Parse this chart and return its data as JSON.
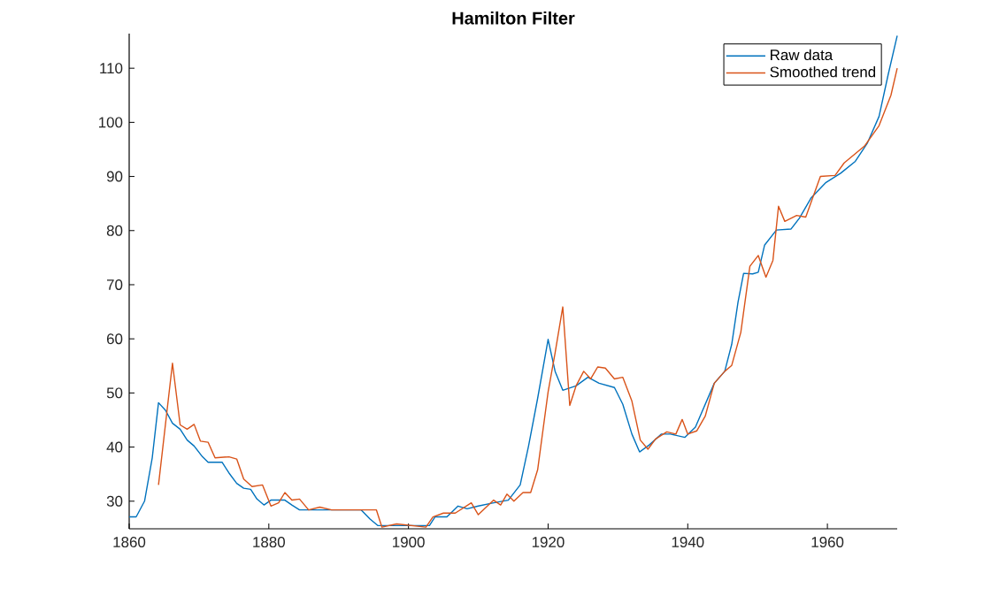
{
  "chart_data": {
    "type": "line",
    "title": "Hamilton Filter",
    "xlim": [
      1860,
      1970
    ],
    "xticks": [
      1860,
      1880,
      1900,
      1920,
      1940,
      1960
    ],
    "ylim": [
      24.9,
      116.4
    ],
    "yticks": [
      30,
      40,
      50,
      60,
      70,
      80,
      90,
      100,
      110
    ],
    "legend": "top right",
    "series": [
      {
        "name": "Raw data",
        "color": "#0072bd",
        "x": [
          1860,
          1861,
          1862.2,
          1863.3,
          1864.2,
          1865.2,
          1866.2,
          1867.3,
          1868.3,
          1869.3,
          1870.5,
          1871.3,
          1873.3,
          1874.3,
          1875.4,
          1876.4,
          1877.4,
          1878.3,
          1879.3,
          1880.3,
          1882.3,
          1883.3,
          1884.4,
          1893.2,
          1894.5,
          1895.6,
          1903,
          1903.8,
          1905.5,
          1907.1,
          1908.4,
          1910,
          1912.2,
          1914.3,
          1916,
          1917.2,
          1918.5,
          1920,
          1921,
          1922.1,
          1924,
          1925.7,
          1927.3,
          1929.5,
          1930.7,
          1932,
          1933.1,
          1934.5,
          1936.2,
          1937.5,
          1939.6,
          1941.1,
          1942.5,
          1943.8,
          1945.3,
          1946.3,
          1947.2,
          1948,
          1949.3,
          1950.1,
          1951,
          1952.7,
          1954.8,
          1956,
          1957.7,
          1959.8,
          1961.9,
          1964,
          1965.7,
          1967.4,
          1968.7,
          1970
        ],
        "values": [
          27.1,
          27.1,
          30,
          38,
          48.2,
          46.8,
          44.4,
          43.3,
          41.3,
          40.2,
          38.2,
          37.2,
          37.2,
          35.2,
          33.3,
          32.4,
          32.2,
          30.4,
          29.3,
          30.2,
          30.2,
          29.3,
          28.4,
          28.4,
          26.7,
          25.5,
          25.5,
          27.1,
          27.1,
          29.1,
          28.6,
          29.1,
          29.7,
          30.2,
          33,
          40.2,
          49,
          59.9,
          54,
          50.5,
          51.3,
          52.9,
          51.8,
          51,
          47.9,
          42.4,
          39.1,
          40.4,
          42.4,
          42.4,
          41.8,
          43.7,
          47.9,
          51.8,
          54,
          59,
          66.8,
          72.1,
          72,
          72.3,
          77.3,
          80.1,
          80.3,
          82.3,
          86.1,
          88.9,
          90.6,
          92.8,
          96.1,
          101.1,
          108.8,
          116
        ]
      },
      {
        "name": "Smoothed trend",
        "color": "#d95319",
        "x": [
          1864.2,
          1866.2,
          1867.3,
          1868.3,
          1869.3,
          1870.2,
          1871.3,
          1872.3,
          1874.3,
          1875.4,
          1876.4,
          1877.6,
          1879.1,
          1880.3,
          1881.4,
          1882.3,
          1883.3,
          1884.4,
          1885.7,
          1887.3,
          1889,
          1895.4,
          1896.2,
          1898.3,
          1902.5,
          1903.5,
          1905,
          1906.7,
          1909,
          1910,
          1912.2,
          1913.2,
          1914.1,
          1915.1,
          1916.4,
          1917.5,
          1918.5,
          1920,
          1921,
          1922.1,
          1923.1,
          1924,
          1925.1,
          1926.1,
          1927.1,
          1928.2,
          1929.5,
          1930.7,
          1932,
          1933.2,
          1934.3,
          1935.4,
          1937,
          1938.3,
          1939.2,
          1940,
          1941.3,
          1942.5,
          1943.8,
          1945.3,
          1946.3,
          1947.6,
          1948.9,
          1950.1,
          1951.2,
          1952.2,
          1953,
          1953.9,
          1955.6,
          1956.9,
          1959,
          1961.1,
          1962.4,
          1965.3,
          1967.4,
          1969.1,
          1970
        ],
        "values": [
          33,
          55.5,
          44.1,
          43.3,
          44.2,
          41.1,
          40.9,
          38,
          38.2,
          37.8,
          34.1,
          32.7,
          33,
          29.1,
          29.7,
          31.6,
          30.2,
          30.4,
          28.4,
          28.9,
          28.4,
          28.4,
          25.2,
          25.8,
          25.2,
          27.1,
          27.8,
          27.8,
          29.7,
          27.5,
          30.2,
          29.3,
          31.3,
          30,
          31.6,
          31.6,
          35.8,
          50.2,
          57.4,
          65.9,
          47.7,
          51.3,
          54,
          52.6,
          54.8,
          54.6,
          52.6,
          52.9,
          48.5,
          41.3,
          39.6,
          41.5,
          42.8,
          42.4,
          45.1,
          42.4,
          43,
          45.7,
          51.8,
          54,
          55.1,
          61.2,
          73.4,
          75.4,
          71.4,
          74.5,
          84.5,
          81.7,
          82.8,
          82.5,
          90,
          90.2,
          92.5,
          95.6,
          99.4,
          105,
          110
        ]
      }
    ]
  }
}
